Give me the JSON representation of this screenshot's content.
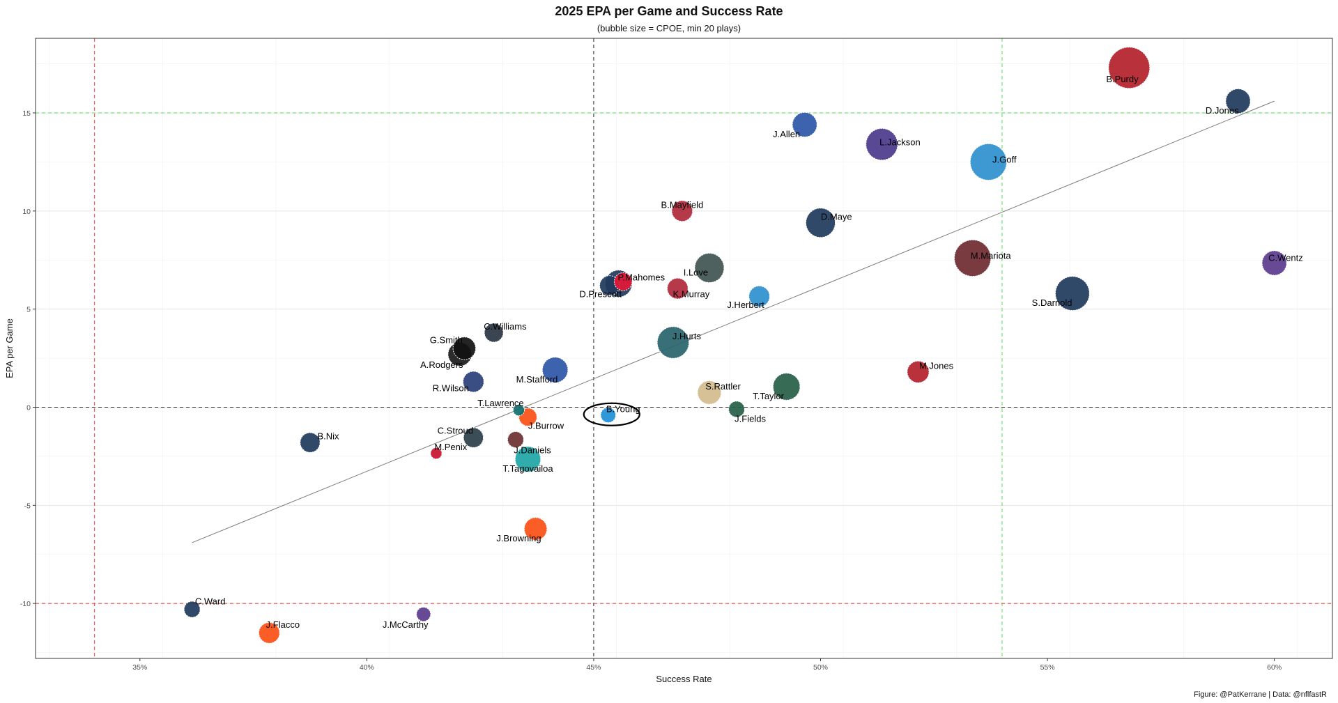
{
  "chart_data": {
    "type": "scatter",
    "title": "2025 EPA per Game and Success Rate",
    "subtitle": "(bubble size = CPOE, min 20 plays)",
    "xlabel": "Success Rate",
    "ylabel": "EPA per Game",
    "caption": "Figure: @PatKerrane | Data: @nflfastR",
    "xlim": [
      0.327,
      0.6128
    ],
    "ylim": [
      -12.8,
      18.8
    ],
    "xticks": [
      {
        "v": 0.35,
        "label": "35%"
      },
      {
        "v": 0.4,
        "label": "40%"
      },
      {
        "v": 0.45,
        "label": "45%"
      },
      {
        "v": 0.5,
        "label": "50%"
      },
      {
        "v": 0.55,
        "label": "55%"
      },
      {
        "v": 0.6,
        "label": "60%"
      }
    ],
    "yticks": [
      {
        "v": -10,
        "label": "-10"
      },
      {
        "v": -5,
        "label": "-5"
      },
      {
        "v": 0,
        "label": "0"
      },
      {
        "v": 5,
        "label": "5"
      },
      {
        "v": 10,
        "label": "10"
      },
      {
        "v": 15,
        "label": "15"
      }
    ],
    "grid": true,
    "reference_lines": {
      "vertical": [
        {
          "x": 0.34,
          "color": "#f04a4a"
        },
        {
          "x": 0.45,
          "color": "#333333"
        },
        {
          "x": 0.54,
          "color": "#5ee35e"
        }
      ],
      "horizontal": [
        {
          "y": -10,
          "color": "#f04a4a"
        },
        {
          "y": 0,
          "color": "#333333"
        },
        {
          "y": 15,
          "color": "#5ee35e"
        }
      ]
    },
    "trend_line": {
      "x1": 0.3615,
      "y1": -6.9,
      "x2": 0.6,
      "y2": 15.6,
      "color": "#7a7a7a"
    },
    "highlight": {
      "name": "B.Young"
    },
    "points": [
      {
        "name": "B.Purdy",
        "x": 0.568,
        "y": 17.3,
        "size": 7.5,
        "color": "#B3202A",
        "lx": 0.5665,
        "ly": 16.7
      },
      {
        "name": "D.Jones",
        "x": 0.592,
        "y": 15.6,
        "size": 4.0,
        "color": "#1F3A5C",
        "lx": 0.5885,
        "ly": 15.1
      },
      {
        "name": "J.Allen",
        "x": 0.4965,
        "y": 14.4,
        "size": 4.0,
        "color": "#2C55A7",
        "lx": 0.4925,
        "ly": 13.9
      },
      {
        "name": "L.Jackson",
        "x": 0.5135,
        "y": 13.4,
        "size": 5.5,
        "color": "#4B3A8C",
        "lx": 0.5175,
        "ly": 13.5
      },
      {
        "name": "J.Goff",
        "x": 0.537,
        "y": 12.5,
        "size": 6.5,
        "color": "#2E8FCE",
        "lx": 0.5405,
        "ly": 12.6
      },
      {
        "name": "B.Mayfield",
        "x": 0.4695,
        "y": 10.0,
        "size": 3.2,
        "color": "#B0283A",
        "lx": 0.4695,
        "ly": 10.3
      },
      {
        "name": "D.Maye",
        "x": 0.5,
        "y": 9.4,
        "size": 5.0,
        "color": "#1F3A5C",
        "lx": 0.5035,
        "ly": 9.7
      },
      {
        "name": "M.Mariota",
        "x": 0.5335,
        "y": 7.6,
        "size": 6.5,
        "color": "#6E2A2F",
        "lx": 0.5375,
        "ly": 7.7
      },
      {
        "name": "C.Wentz",
        "x": 0.6,
        "y": 7.35,
        "size": 4.0,
        "color": "#5A3A8C",
        "lx": 0.6025,
        "ly": 7.6
      },
      {
        "name": "I.Love",
        "x": 0.4755,
        "y": 7.1,
        "size": 5.0,
        "color": "#3F5450",
        "lx": 0.4725,
        "ly": 6.85
      },
      {
        "name": "P.Mahomes",
        "x": 0.4555,
        "y": 6.3,
        "size": 4.5,
        "color": "#1F3A5C",
        "lx": 0.4605,
        "ly": 6.6
      },
      {
        "name": "P.Mahomes-alt",
        "x": 0.4565,
        "y": 6.4,
        "size": 2.6,
        "color": "#E31837",
        "lx": null,
        "ly": null
      },
      {
        "name": "K.Murray",
        "x": 0.4685,
        "y": 6.05,
        "size": 3.2,
        "color": "#B0283A",
        "lx": 0.4715,
        "ly": 5.75
      },
      {
        "name": "D.Prescott",
        "x": 0.4535,
        "y": 6.2,
        "size": 3.0,
        "color": "#1F3A5C",
        "lx": 0.4515,
        "ly": 5.75
      },
      {
        "name": "J.Herbert",
        "x": 0.4865,
        "y": 5.65,
        "size": 3.2,
        "color": "#2E8FCE",
        "lx": 0.4835,
        "ly": 5.2
      },
      {
        "name": "S.Darnold",
        "x": 0.5555,
        "y": 5.8,
        "size": 6.0,
        "color": "#1F3A5C",
        "lx": 0.551,
        "ly": 5.3
      },
      {
        "name": "C.Williams",
        "x": 0.428,
        "y": 3.8,
        "size": 2.8,
        "color": "#2A3542",
        "lx": 0.4305,
        "ly": 4.1
      },
      {
        "name": "G.Smith",
        "x": 0.4215,
        "y": 3.0,
        "size": 3.6,
        "color": "#111111",
        "lx": 0.4175,
        "ly": 3.4
      },
      {
        "name": "J.Hurts",
        "x": 0.4675,
        "y": 3.3,
        "size": 5.5,
        "color": "#28636B",
        "lx": 0.4705,
        "ly": 3.6
      },
      {
        "name": "A.Rodgers",
        "x": 0.4205,
        "y": 2.7,
        "size": 3.8,
        "color": "#1A1A1A",
        "lx": 0.4165,
        "ly": 2.15
      },
      {
        "name": "M.Stafford",
        "x": 0.4415,
        "y": 1.9,
        "size": 4.2,
        "color": "#2C55A7",
        "lx": 0.4375,
        "ly": 1.4
      },
      {
        "name": "M.Jones",
        "x": 0.5215,
        "y": 1.8,
        "size": 3.4,
        "color": "#B3202A",
        "lx": 0.5255,
        "ly": 2.1
      },
      {
        "name": "R.Wilson",
        "x": 0.4235,
        "y": 1.3,
        "size": 3.2,
        "color": "#2A3F7A",
        "lx": 0.4185,
        "ly": 0.95
      },
      {
        "name": "S.Rattler",
        "x": 0.4755,
        "y": 0.75,
        "size": 3.8,
        "color": "#D3BC8D",
        "lx": 0.4785,
        "ly": 1.05
      },
      {
        "name": "T.Taylor",
        "x": 0.4925,
        "y": 1.05,
        "size": 4.5,
        "color": "#275E47",
        "lx": 0.4885,
        "ly": 0.55
      },
      {
        "name": "T.Lawrence",
        "x": 0.4335,
        "y": -0.15,
        "size": 1.2,
        "color": "#0E6E6E",
        "lx": 0.4295,
        "ly": 0.2
      },
      {
        "name": "J.Fields",
        "x": 0.4815,
        "y": -0.1,
        "size": 2.2,
        "color": "#275E47",
        "lx": 0.4845,
        "ly": -0.6
      },
      {
        "name": "B.Young",
        "x": 0.4532,
        "y": -0.4,
        "size": 2.0,
        "color": "#1D8FD6",
        "lx": 0.4565,
        "ly": -0.1
      },
      {
        "name": "J.Burrow",
        "x": 0.4355,
        "y": -0.5,
        "size": 2.6,
        "color": "#FB4F14",
        "lx": 0.4395,
        "ly": -0.95
      },
      {
        "name": "C.Stroud",
        "x": 0.4235,
        "y": -1.55,
        "size": 3.0,
        "color": "#2A3F4A",
        "lx": 0.4195,
        "ly": -1.2
      },
      {
        "name": "B.Nix",
        "x": 0.3875,
        "y": -1.8,
        "size": 3.0,
        "color": "#203A5C",
        "lx": 0.3915,
        "ly": -1.5
      },
      {
        "name": "J.Daniels",
        "x": 0.4328,
        "y": -1.65,
        "size": 2.2,
        "color": "#6B2F2F",
        "lx": 0.4365,
        "ly": -2.2
      },
      {
        "name": "M.Penix",
        "x": 0.4153,
        "y": -2.35,
        "size": 1.2,
        "color": "#C8102E",
        "lx": 0.4185,
        "ly": -2.05
      },
      {
        "name": "T.Tagovailoa",
        "x": 0.4355,
        "y": -2.65,
        "size": 4.2,
        "color": "#1FA5A5",
        "lx": 0.4355,
        "ly": -3.15
      },
      {
        "name": "J.Browning",
        "x": 0.4372,
        "y": -6.2,
        "size": 3.6,
        "color": "#FB4F14",
        "lx": 0.4335,
        "ly": -6.7
      },
      {
        "name": "C.Ward",
        "x": 0.3615,
        "y": -10.3,
        "size": 2.2,
        "color": "#1F3A5C",
        "lx": 0.3655,
        "ly": -9.9
      },
      {
        "name": "J.McCarthy",
        "x": 0.4125,
        "y": -10.55,
        "size": 1.8,
        "color": "#5A3A8C",
        "lx": 0.4085,
        "ly": -11.1
      },
      {
        "name": "J.Flacco",
        "x": 0.3785,
        "y": -11.5,
        "size": 3.2,
        "color": "#FB4F14",
        "lx": 0.3815,
        "ly": -11.1
      }
    ]
  }
}
